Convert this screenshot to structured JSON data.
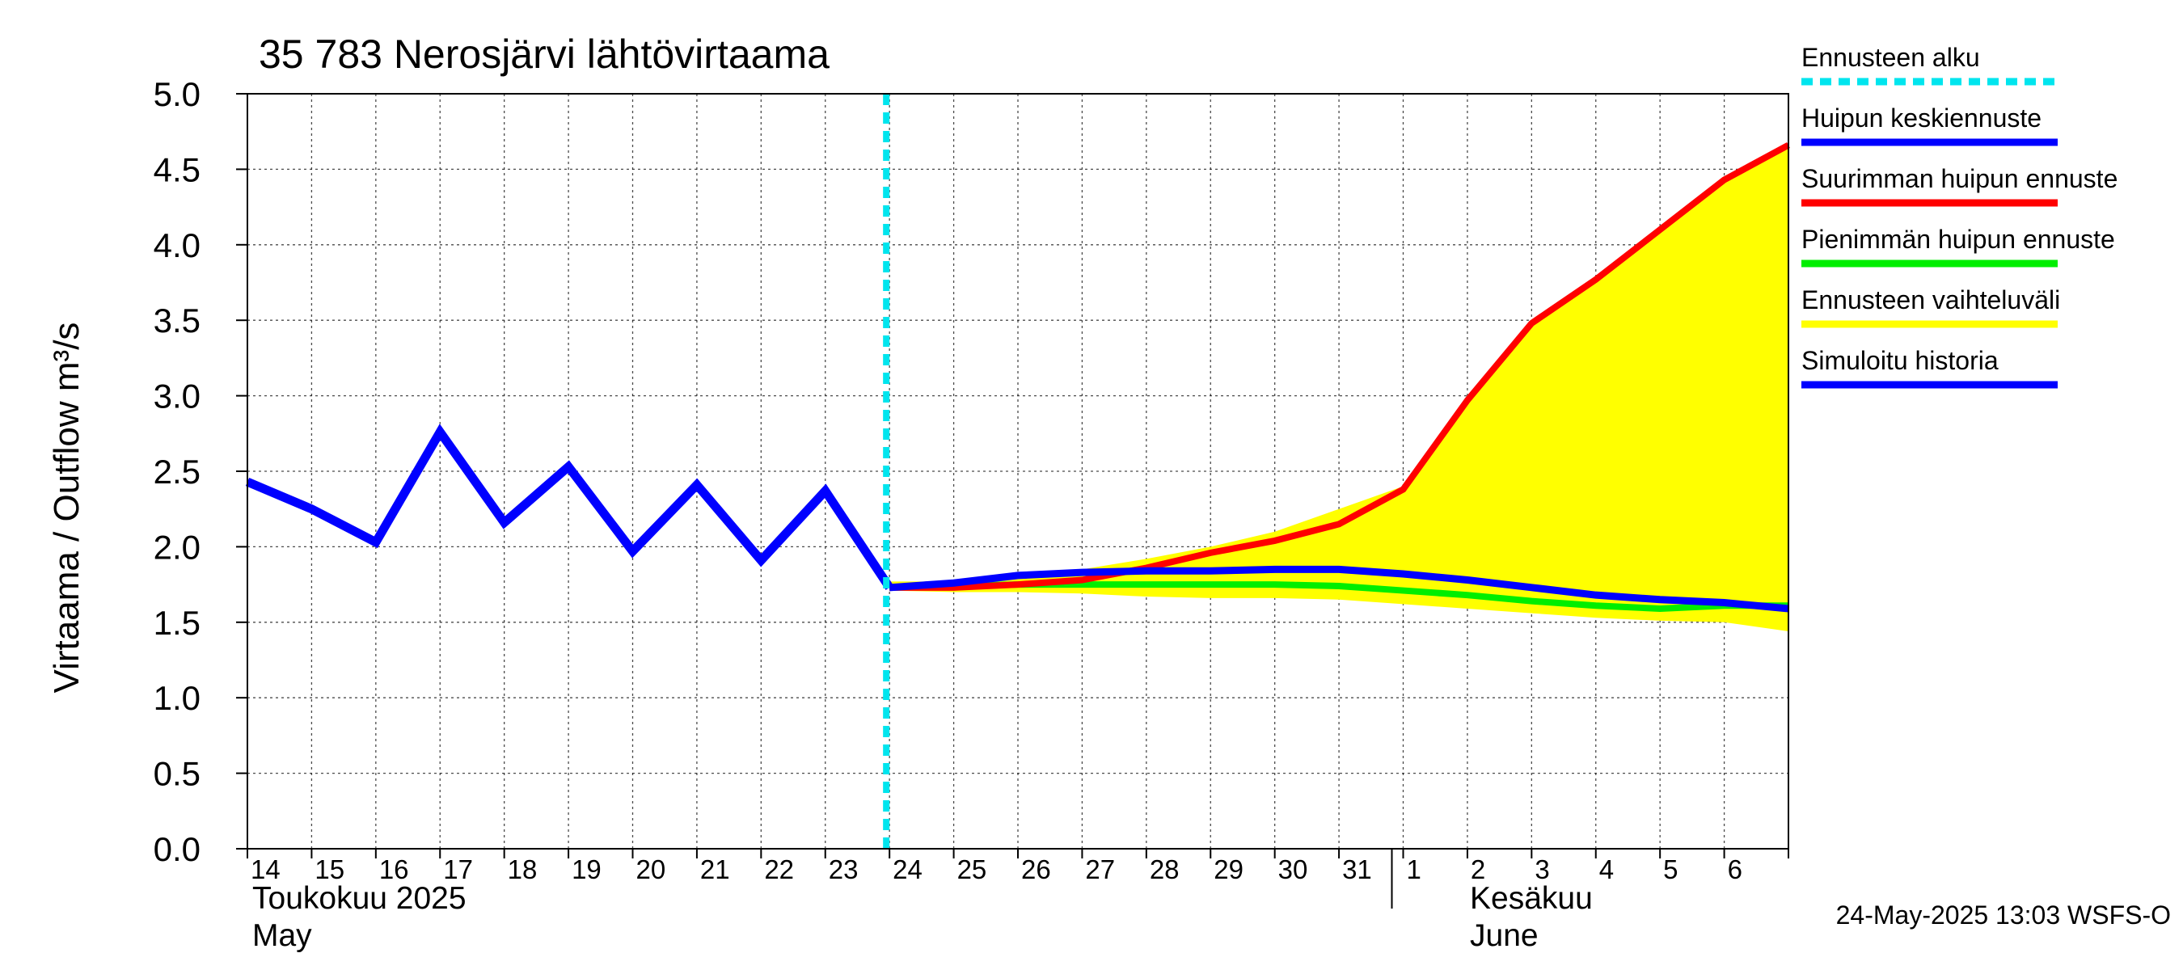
{
  "chart_data": {
    "type": "line",
    "title": "35 783 Nerosjärvi lähtövirtaama",
    "ylabel": "Virtaama / Outflow    m³/s",
    "ylim": [
      0,
      5
    ],
    "yticks": [
      "0.0",
      "0.5",
      "1.0",
      "1.5",
      "2.0",
      "2.5",
      "3.0",
      "3.5",
      "4.0",
      "4.5",
      "5.0"
    ],
    "x_labels": [
      "14",
      "15",
      "16",
      "17",
      "18",
      "19",
      "20",
      "21",
      "22",
      "23",
      "24",
      "25",
      "26",
      "27",
      "28",
      "29",
      "30",
      "31",
      "1",
      "2",
      "3",
      "4",
      "5",
      "6"
    ],
    "month_labels": {
      "may_fi": "Toukokuu  2025",
      "may_en": "May",
      "june_fi": "Kesäkuu",
      "june_en": "June"
    },
    "forecast_start_index": 10,
    "series": [
      {
        "name": "Simuloitu historia",
        "color": "#0000ff",
        "x": [
          0,
          1,
          2,
          3,
          4,
          5,
          6,
          7,
          8,
          9,
          10
        ],
        "values": [
          2.43,
          2.25,
          2.03,
          2.76,
          2.16,
          2.53,
          1.97,
          2.41,
          1.91,
          2.37,
          1.73
        ]
      },
      {
        "name": "Huipun keskiennuste",
        "color": "#0000ff",
        "x": [
          10,
          11,
          12,
          13,
          14,
          15,
          16,
          17,
          18,
          19,
          20,
          21,
          22,
          23,
          24
        ],
        "values": [
          1.73,
          1.76,
          1.81,
          1.83,
          1.84,
          1.84,
          1.85,
          1.85,
          1.82,
          1.78,
          1.73,
          1.68,
          1.65,
          1.63,
          1.59
        ]
      },
      {
        "name": "Suurimman huipun ennuste",
        "color": "#ff0000",
        "x": [
          10,
          11,
          12,
          13,
          14,
          15,
          16,
          17,
          18,
          19,
          20,
          21,
          22,
          23,
          24
        ],
        "values": [
          1.73,
          1.73,
          1.75,
          1.78,
          1.86,
          1.96,
          2.04,
          2.15,
          2.38,
          2.97,
          3.48,
          3.77,
          4.1,
          4.43,
          4.66
        ]
      },
      {
        "name": "Pienimmän huipun ennuste",
        "color": "#00ee00",
        "x": [
          10,
          11,
          12,
          13,
          14,
          15,
          16,
          17,
          18,
          19,
          20,
          21,
          22,
          23,
          24
        ],
        "values": [
          1.73,
          1.74,
          1.75,
          1.75,
          1.75,
          1.75,
          1.75,
          1.74,
          1.71,
          1.68,
          1.64,
          1.61,
          1.59,
          1.61,
          1.61
        ]
      }
    ],
    "band": {
      "name": "Ennusteen vaihteluväli",
      "color": "#ffff00",
      "x": [
        10,
        11,
        12,
        13,
        14,
        15,
        16,
        17,
        18,
        19,
        20,
        21,
        22,
        23,
        24
      ],
      "upper": [
        1.77,
        1.77,
        1.8,
        1.85,
        1.92,
        2.0,
        2.1,
        2.25,
        2.4,
        2.97,
        3.48,
        3.77,
        4.1,
        4.43,
        4.66
      ],
      "lower": [
        1.71,
        1.7,
        1.7,
        1.69,
        1.67,
        1.66,
        1.66,
        1.65,
        1.62,
        1.59,
        1.56,
        1.53,
        1.51,
        1.5,
        1.44
      ]
    },
    "legend": [
      {
        "label": "Ennusteen alku",
        "color": "#00e5ee",
        "dashed": true
      },
      {
        "label": "Huipun keskiennuste",
        "color": "#0000ff",
        "dashed": false
      },
      {
        "label": "Suurimman huipun ennuste",
        "color": "#ff0000",
        "dashed": false
      },
      {
        "label": "Pienimmän huipun ennuste",
        "color": "#00ee00",
        "dashed": false
      },
      {
        "label": "Ennusteen vaihteluväli",
        "color": "#ffff00",
        "dashed": false
      },
      {
        "label": "Simuloitu historia",
        "color": "#0000ff",
        "dashed": false
      }
    ],
    "footer": "24-May-2025 13:03 WSFS-O"
  }
}
